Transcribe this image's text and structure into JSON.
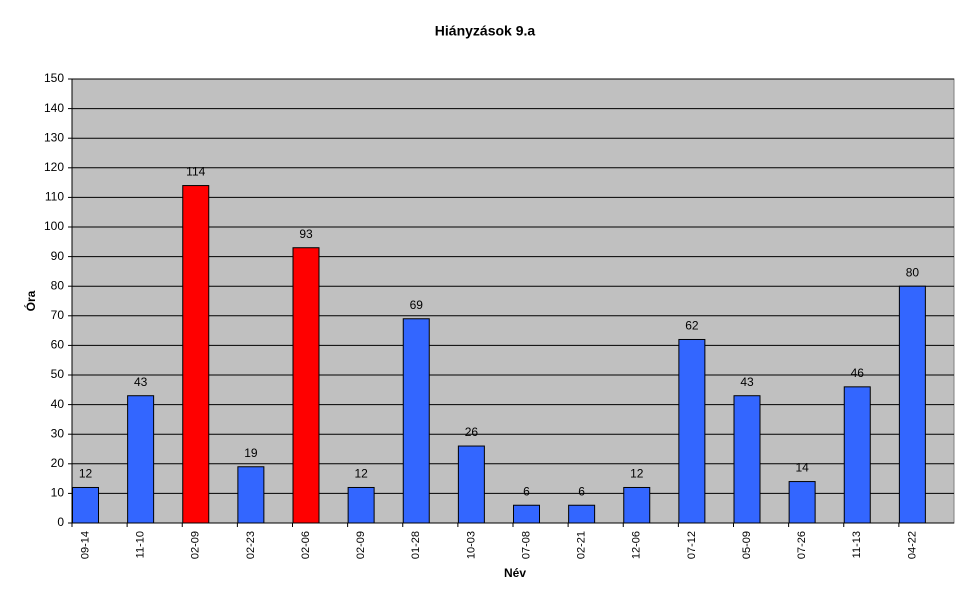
{
  "chart_data": {
    "type": "bar",
    "title": "Hiányzások 9.a",
    "x_label": "Név",
    "y_label": "Óra",
    "categories": [
      "09-14",
      "11-10",
      "02-09",
      "02-23",
      "02-06",
      "02-09",
      "01-28",
      "10-03",
      "07-08",
      "02-21",
      "12-06",
      "07-12",
      "05-09",
      "07-26",
      "11-13",
      "04-22"
    ],
    "values": [
      12,
      43,
      114,
      19,
      93,
      12,
      69,
      26,
      6,
      6,
      12,
      62,
      43,
      14,
      46,
      80
    ],
    "colors": [
      "#3366ff",
      "#3366ff",
      "#ff0000",
      "#3366ff",
      "#ff0000",
      "#3366ff",
      "#3366ff",
      "#3366ff",
      "#3366ff",
      "#3366ff",
      "#3366ff",
      "#3366ff",
      "#3366ff",
      "#3366ff",
      "#3366ff",
      "#3366ff"
    ],
    "ylim": [
      0,
      150
    ],
    "yticks": [
      0,
      10,
      20,
      30,
      40,
      50,
      60,
      70,
      80,
      90,
      100,
      110,
      120,
      130,
      140,
      150
    ],
    "grid": true
  }
}
